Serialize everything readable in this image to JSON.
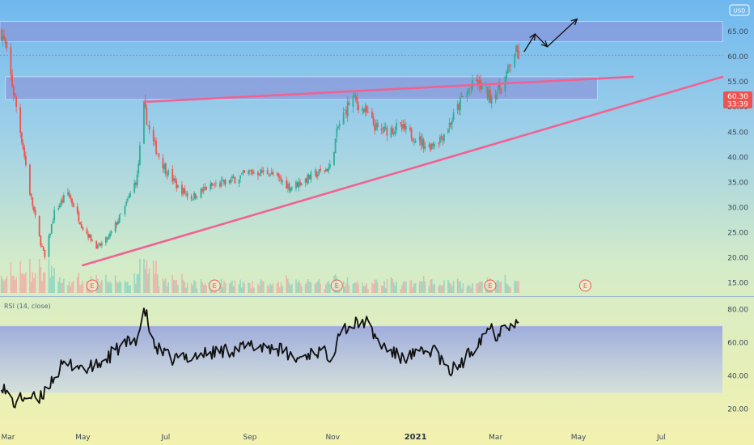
{
  "header": {
    "currency": "USD"
  },
  "price_pane": {
    "price_ticks": [
      "65.00",
      "60.00",
      "55.00",
      "50.00",
      "45.00",
      "40.00",
      "35.00",
      "30.00",
      "25.00",
      "20.00",
      "15.00"
    ],
    "price_tick_values": [
      65,
      60,
      55,
      50,
      45,
      40,
      35,
      30,
      25,
      20,
      15
    ],
    "last_price": "60.30",
    "countdown": "33:39",
    "earnings_marker": "E",
    "colors": {
      "up": "#2eae9a",
      "down": "#ef5350",
      "trendline": "#f06292",
      "zone": "#8a8fd8",
      "tag": "#ef5350"
    }
  },
  "rsi_pane": {
    "title": "RSI (14, close)",
    "ticks": [
      "80.00",
      "60.00",
      "40.00",
      "20.00"
    ],
    "tick_values": [
      80,
      60,
      40,
      20
    ],
    "band": [
      30,
      70
    ]
  },
  "time_axis": {
    "labels": [
      "Mar",
      "May",
      "Jul",
      "Sep",
      "Nov",
      "2021",
      "Mar",
      "May",
      "Jul"
    ],
    "bold": [
      false,
      false,
      false,
      false,
      false,
      true,
      false,
      false,
      false
    ]
  },
  "chart_data": {
    "type": "candlestick",
    "x_range": [
      "2020-03-01",
      "2021-08-15"
    ],
    "y_range": [
      13,
      70
    ],
    "zones": [
      {
        "name": "resistance zone",
        "from": 63,
        "to": 67,
        "x_from": "2020-03-01",
        "x_to": "2021-08-15"
      },
      {
        "name": "breakout zone",
        "from": 51.5,
        "to": 56,
        "x_from": "2020-03-05",
        "x_to": "2021-05-15"
      }
    ],
    "trendlines": [
      {
        "name": "upper trendline",
        "start": [
          "2020-06-15",
          51
        ],
        "end": [
          "2021-06-10",
          56
        ]
      },
      {
        "name": "lower trendline",
        "start": [
          "2020-05-01",
          18.5
        ],
        "end": [
          "2021-08-15",
          56
        ]
      }
    ],
    "projection_arrow": [
      [
        "2021-03-22",
        61
      ],
      [
        "2021-03-30",
        64.5
      ],
      [
        "2021-04-08",
        62
      ],
      [
        "2021-04-30",
        67.5
      ]
    ],
    "earnings_dates": [
      "2020-05-08",
      "2020-08-06",
      "2020-11-04",
      "2021-02-25",
      "2021-05-06"
    ],
    "close_anchors": [
      [
        "2020-03-01",
        66
      ],
      [
        "2020-03-05",
        62
      ],
      [
        "2020-03-09",
        56
      ],
      [
        "2020-03-13",
        50
      ],
      [
        "2020-03-18",
        42
      ],
      [
        "2020-03-23",
        33
      ],
      [
        "2020-03-30",
        24
      ],
      [
        "2020-04-03",
        20
      ],
      [
        "2020-04-10",
        29
      ],
      [
        "2020-04-20",
        33
      ],
      [
        "2020-05-01",
        26
      ],
      [
        "2020-05-12",
        22
      ],
      [
        "2020-05-20",
        24
      ],
      [
        "2020-06-01",
        30
      ],
      [
        "2020-06-10",
        36
      ],
      [
        "2020-06-15",
        50
      ],
      [
        "2020-06-20",
        44
      ],
      [
        "2020-06-30",
        38
      ],
      [
        "2020-07-10",
        34
      ],
      [
        "2020-07-20",
        32
      ],
      [
        "2020-08-01",
        34
      ],
      [
        "2020-08-15",
        35
      ],
      [
        "2020-09-01",
        37
      ],
      [
        "2020-09-15",
        37
      ],
      [
        "2020-10-01",
        34
      ],
      [
        "2020-10-15",
        36
      ],
      [
        "2020-10-30",
        38
      ],
      [
        "2020-11-05",
        46
      ],
      [
        "2020-11-15",
        52
      ],
      [
        "2020-11-25",
        49
      ],
      [
        "2020-12-05",
        45
      ],
      [
        "2020-12-20",
        46
      ],
      [
        "2021-01-01",
        44
      ],
      [
        "2021-01-10",
        42
      ],
      [
        "2021-01-20",
        44
      ],
      [
        "2021-01-27",
        47
      ],
      [
        "2021-02-05",
        52
      ],
      [
        "2021-02-15",
        55
      ],
      [
        "2021-02-25",
        52
      ],
      [
        "2021-03-05",
        54
      ],
      [
        "2021-03-10",
        57
      ],
      [
        "2021-03-15",
        61
      ],
      [
        "2021-03-18",
        60.3
      ]
    ],
    "rsi_anchors": [
      [
        "2020-03-01",
        38
      ],
      [
        "2020-03-05",
        30
      ],
      [
        "2020-03-12",
        23
      ],
      [
        "2020-03-20",
        28
      ],
      [
        "2020-03-30",
        25
      ],
      [
        "2020-04-05",
        34
      ],
      [
        "2020-04-15",
        45
      ],
      [
        "2020-04-25",
        47
      ],
      [
        "2020-05-05",
        44
      ],
      [
        "2020-05-15",
        48
      ],
      [
        "2020-05-25",
        55
      ],
      [
        "2020-06-10",
        63
      ],
      [
        "2020-06-16",
        79
      ],
      [
        "2020-06-22",
        58
      ],
      [
        "2020-07-05",
        50
      ],
      [
        "2020-07-20",
        52
      ],
      [
        "2020-08-05",
        54
      ],
      [
        "2020-08-20",
        56
      ],
      [
        "2020-09-05",
        58
      ],
      [
        "2020-09-20",
        57
      ],
      [
        "2020-10-05",
        50
      ],
      [
        "2020-10-20",
        55
      ],
      [
        "2020-11-01",
        52
      ],
      [
        "2020-11-06",
        68
      ],
      [
        "2020-11-15",
        70
      ],
      [
        "2020-11-25",
        73
      ],
      [
        "2020-12-05",
        60
      ],
      [
        "2020-12-20",
        51
      ],
      [
        "2021-01-05",
        53
      ],
      [
        "2021-01-15",
        56
      ],
      [
        "2021-01-25",
        42
      ],
      [
        "2021-02-05",
        48
      ],
      [
        "2021-02-15",
        60
      ],
      [
        "2021-02-25",
        70
      ],
      [
        "2021-03-01",
        64
      ],
      [
        "2021-03-08",
        72
      ],
      [
        "2021-03-15",
        71
      ]
    ]
  }
}
